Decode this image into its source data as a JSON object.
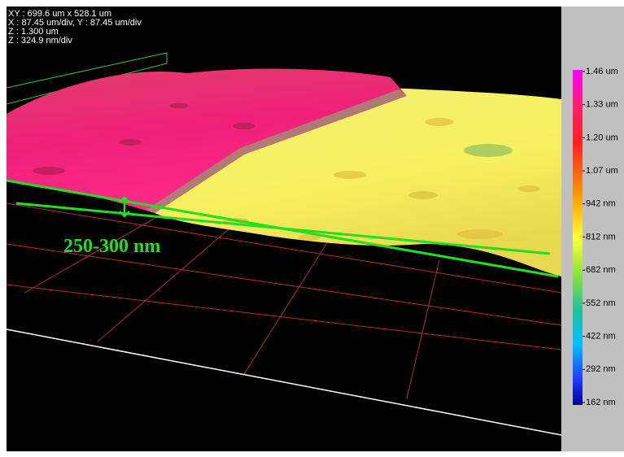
{
  "info": [
    "XY : 699.6 um x 528.1 um",
    "X : 87.45 um/div, Y : 87.45 um/div",
    "Z : 1.300 um",
    "Z : 324.9 nm/div"
  ],
  "annotation": "250-300 nm",
  "colorbar": [
    "1.46 um",
    "1.33 um",
    "1.20 um",
    "1.07 um",
    "942 nm",
    "812 nm",
    "682 nm",
    "552 nm",
    "422 nm",
    "292 nm",
    "162 nm"
  ]
}
